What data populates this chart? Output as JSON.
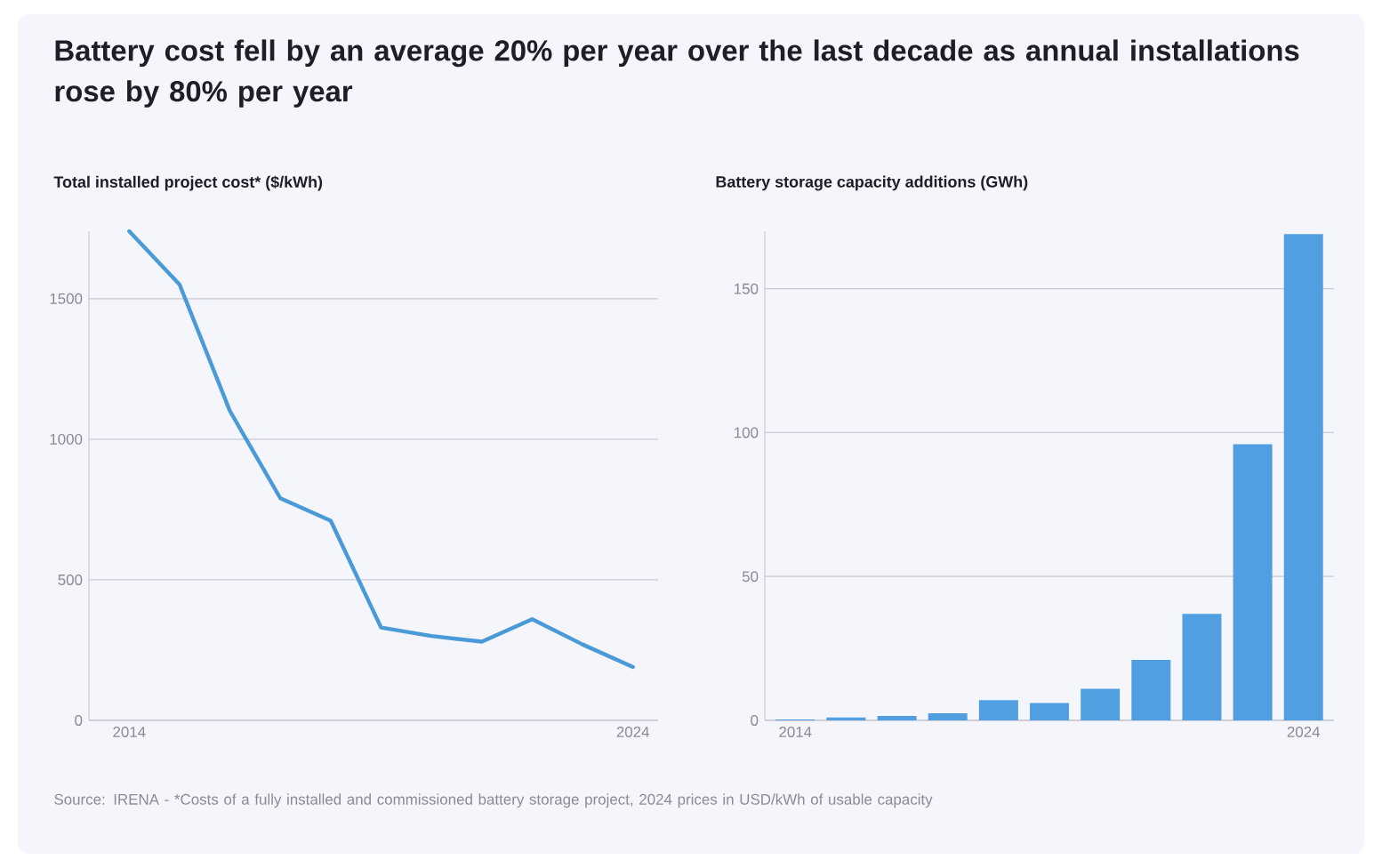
{
  "chart_data": [
    {
      "type": "line",
      "title": "Battery cost fell by an average 20% per year over the last decade as annual installations rose by 80% per year",
      "ylabel": "Total installed project cost* ($/kWh)",
      "categories": [
        "2014",
        null,
        null,
        null,
        null,
        null,
        null,
        null,
        null,
        null,
        "2024"
      ],
      "values": [
        1740,
        1550,
        1100,
        790,
        710,
        330,
        300,
        280,
        360,
        270,
        190
      ],
      "color": "#4a9ad8",
      "ylim": [
        0,
        1740
      ],
      "yticks": [
        0,
        500,
        1000,
        1500
      ],
      "grid": "y",
      "annotations": [
        "Source: IRENA - *Costs of a fully installed and commissioned battery storage project, 2024 prices in USD/kWh of usable capacity"
      ]
    },
    {
      "type": "bar",
      "ylabel": "Battery storage capacity additions (GWh)",
      "categories": [
        "2014",
        null,
        null,
        null,
        null,
        null,
        null,
        null,
        null,
        null,
        "2024"
      ],
      "values": [
        0.3,
        1,
        1.5,
        2.5,
        7,
        6,
        11,
        21,
        37,
        96,
        169
      ],
      "color": "#519fe0",
      "ylim": [
        0,
        170
      ],
      "yticks": [
        0,
        50,
        100,
        150
      ],
      "grid": "y"
    }
  ]
}
